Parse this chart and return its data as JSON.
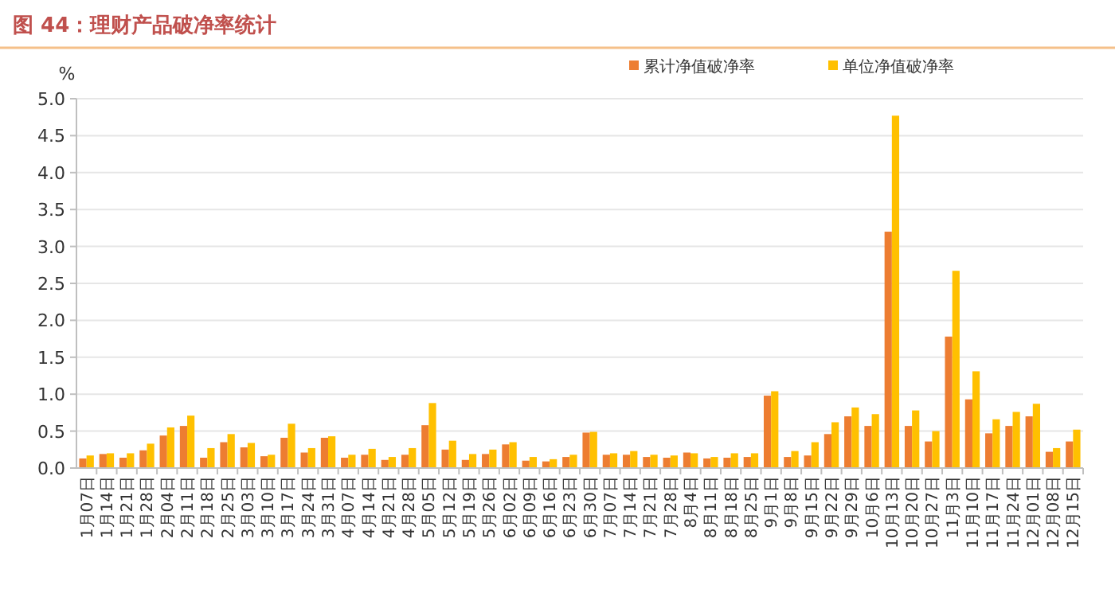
{
  "chart_data": {
    "type": "bar",
    "title": "图 44：理财产品破净率统计",
    "ylabel": "%",
    "categories": [
      "1月07日",
      "1月14日",
      "1月21日",
      "1月28日",
      "2月04日",
      "2月11日",
      "2月18日",
      "2月25日",
      "3月03日",
      "3月10日",
      "3月17日",
      "3月24日",
      "3月31日",
      "4月07日",
      "4月14日",
      "4月21日",
      "4月28日",
      "5月05日",
      "5月12日",
      "5月19日",
      "5月26日",
      "6月02日",
      "6月09日",
      "6月16日",
      "6月23日",
      "6月30日",
      "7月07日",
      "7月14日",
      "7月21日",
      "7月28日",
      "8月4日",
      "8月11日",
      "8月18日",
      "8月25日",
      "9月1日",
      "9月8日",
      "9月15日",
      "9月22日",
      "9月29日",
      "10月6日",
      "10月13日",
      "10月20日",
      "10月27日",
      "11月3日",
      "11月10日",
      "11月17日",
      "11月24日",
      "12月01日",
      "12月08日",
      "12月15日"
    ],
    "series": [
      {
        "name": "累计净值破净率",
        "color": "#ed7d31",
        "values": [
          0.13,
          0.19,
          0.14,
          0.24,
          0.44,
          0.57,
          0.14,
          0.35,
          0.28,
          0.16,
          0.41,
          0.21,
          0.41,
          0.14,
          0.18,
          0.11,
          0.18,
          0.58,
          0.25,
          0.11,
          0.19,
          0.32,
          0.1,
          0.09,
          0.15,
          0.48,
          0.18,
          0.18,
          0.15,
          0.14,
          0.21,
          0.13,
          0.14,
          0.15,
          0.98,
          0.15,
          0.17,
          0.46,
          0.7,
          0.57,
          3.2,
          0.57,
          0.36,
          1.78,
          0.93,
          0.47,
          0.57,
          0.7,
          0.22,
          0.36
        ]
      },
      {
        "name": "单位净值破净率",
        "color": "#ffc000",
        "values": [
          0.17,
          0.2,
          0.2,
          0.33,
          0.55,
          0.71,
          0.27,
          0.46,
          0.34,
          0.18,
          0.6,
          0.27,
          0.43,
          0.18,
          0.26,
          0.15,
          0.27,
          0.88,
          0.37,
          0.19,
          0.25,
          0.35,
          0.15,
          0.12,
          0.18,
          0.49,
          0.2,
          0.23,
          0.18,
          0.17,
          0.2,
          0.15,
          0.2,
          0.2,
          1.04,
          0.23,
          0.35,
          0.62,
          0.82,
          0.73,
          4.77,
          0.78,
          0.5,
          2.67,
          1.31,
          0.66,
          0.76,
          0.87,
          0.27,
          0.52
        ]
      }
    ],
    "ylim": [
      0,
      5
    ],
    "yticks": [
      {
        "value": 0,
        "label": "0.0"
      },
      {
        "value": 0.5,
        "label": "0.5"
      },
      {
        "value": 1,
        "label": "1.0"
      },
      {
        "value": 1.5,
        "label": "1.5"
      },
      {
        "value": 2,
        "label": "2.0"
      },
      {
        "value": 2.5,
        "label": "2.5"
      },
      {
        "value": 3,
        "label": "3.0"
      },
      {
        "value": 3.5,
        "label": "3.5"
      },
      {
        "value": 4,
        "label": "4.0"
      },
      {
        "value": 4.5,
        "label": "4.5"
      },
      {
        "value": 5,
        "label": "5.0"
      }
    ],
    "grid": "y",
    "legend": "top right"
  }
}
